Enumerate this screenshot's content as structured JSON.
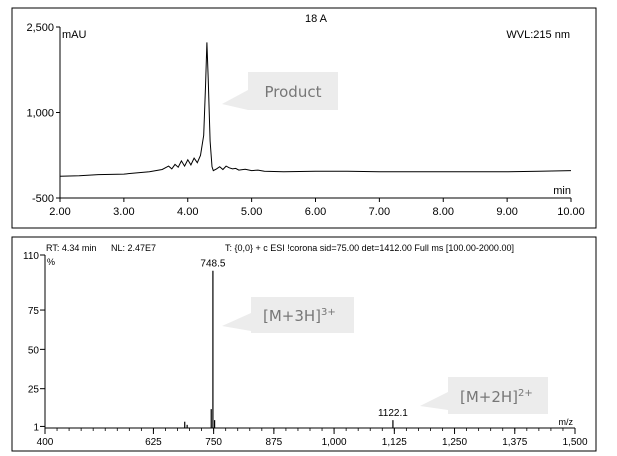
{
  "chart_data": [
    {
      "type": "line",
      "title": "18 A",
      "ylabel": "mAU",
      "xlabel": "min",
      "corner_label": "WVL:215 nm",
      "xlim": [
        2.0,
        10.0
      ],
      "ylim": [
        -500,
        2500
      ],
      "x_ticks": [
        2,
        3,
        4,
        5,
        6,
        7,
        8,
        9,
        10
      ],
      "x_tick_labels": [
        "2.00",
        "3.00",
        "4.00",
        "5.00",
        "6.00",
        "7.00",
        "8.00",
        "9.00",
        "10.00"
      ],
      "y_ticks": [
        -500,
        1000,
        2500
      ],
      "y_tick_labels": [
        "-500",
        "1,000",
        "2,500"
      ],
      "series": [
        {
          "x": [
            2.0,
            2.3,
            2.6,
            3.0,
            3.2,
            3.4,
            3.6,
            3.7,
            3.75,
            3.8,
            3.85,
            3.9,
            3.95,
            4.0,
            4.05,
            4.1,
            4.15,
            4.2,
            4.25,
            4.28,
            4.3,
            4.32,
            4.35,
            4.38,
            4.4,
            4.45,
            4.5,
            4.55,
            4.6,
            4.65,
            4.7,
            4.75,
            4.8,
            4.9,
            5.0,
            5.1,
            5.2,
            5.5,
            6.0,
            6.5,
            7.0,
            7.5,
            8.0,
            8.5,
            9.0,
            9.5,
            10.0
          ],
          "y": [
            -120,
            -110,
            -90,
            -80,
            -60,
            -40,
            0,
            60,
            10,
            90,
            40,
            150,
            60,
            170,
            80,
            200,
            120,
            250,
            600,
            1500,
            2230,
            1600,
            500,
            50,
            -20,
            10,
            50,
            0,
            60,
            30,
            10,
            20,
            -10,
            5,
            -20,
            -10,
            -30,
            -40,
            -30,
            -30,
            -40,
            -40,
            -40,
            -40,
            -40,
            -30,
            -20
          ]
        }
      ],
      "annotations": [
        {
          "text": "Product",
          "x": 4.32
        }
      ]
    },
    {
      "type": "bar",
      "header": {
        "rt": "RT: 4.34 min",
        "nl": "NL: 2.47E7",
        "scan": "T: {0,0}  + c ESI !corona sid=75.00  det=1412.00 Full ms [100.00-2000.00]"
      },
      "ylabel": "%",
      "xlabel": "m/z",
      "xlim": [
        400,
        1500
      ],
      "ylim": [
        0,
        110
      ],
      "x_ticks": [
        400,
        625,
        750,
        875,
        1000,
        1125,
        1250,
        1375,
        1500
      ],
      "x_tick_labels": [
        "400",
        "625",
        "750",
        "875",
        "1,000",
        "1,125",
        "1,250",
        "1,375",
        "1,500"
      ],
      "y_ticks": [
        1,
        25,
        50,
        75,
        110
      ],
      "y_tick_labels": [
        "1",
        "25",
        "50",
        "75",
        "110"
      ],
      "peaks": [
        {
          "mz": 748.5,
          "intensity": 100
        },
        {
          "mz": 745,
          "intensity": 12
        },
        {
          "mz": 752,
          "intensity": 5
        },
        {
          "mz": 690,
          "intensity": 4
        },
        {
          "mz": 695,
          "intensity": 2
        },
        {
          "mz": 1122.1,
          "intensity": 5
        }
      ],
      "peak_labels": [
        "748.5",
        "1122.1"
      ],
      "annotations": [
        {
          "text": "[M+3H]",
          "sup": "3+",
          "mz": 748.5
        },
        {
          "text": "[M+2H]",
          "sup": "2+",
          "mz": 1122.1
        }
      ]
    }
  ]
}
